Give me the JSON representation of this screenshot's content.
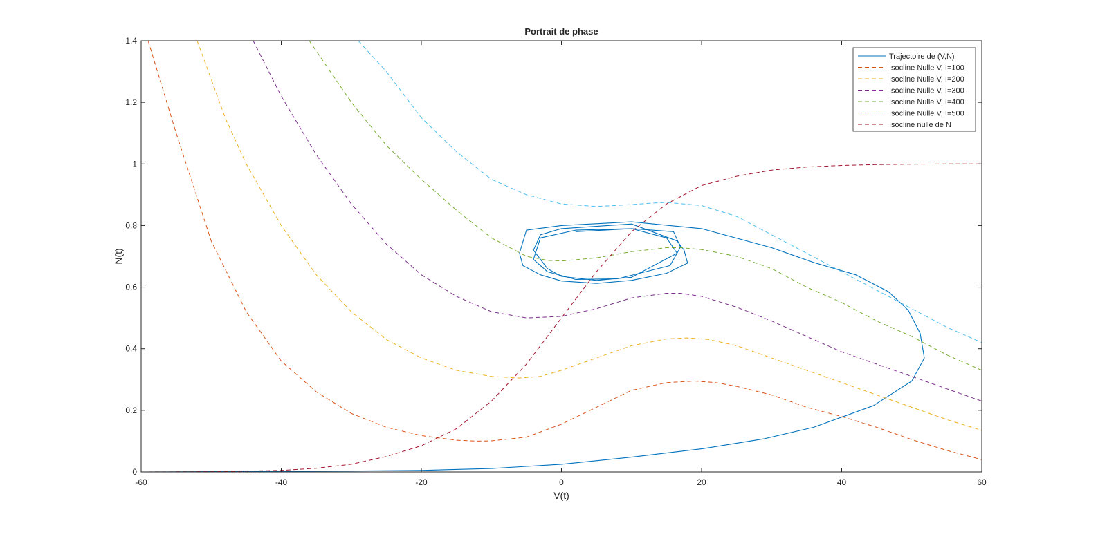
{
  "figure": {
    "background": "#ffffff"
  },
  "chart_data": {
    "type": "line",
    "title": "Portrait de phase",
    "xlabel": "V(t)",
    "ylabel": "N(t)",
    "xlim": [
      -60,
      60
    ],
    "ylim": [
      0,
      1.4
    ],
    "xticks": [
      -60,
      -40,
      -20,
      0,
      20,
      40,
      60
    ],
    "yticks": [
      0,
      0.2,
      0.4,
      0.6,
      0.8,
      1,
      1.2,
      1.4
    ],
    "xtick_labels": [
      "-60",
      "-40",
      "-20",
      "0",
      "20",
      "40",
      "60"
    ],
    "ytick_labels": [
      "0",
      "0.2",
      "0.4",
      "0.6",
      "0.8",
      "1",
      "1.2",
      "1.4"
    ],
    "grid": false,
    "box": true,
    "legend_position": "top-right",
    "series": [
      {
        "name": "Trajectoire de (V,N)",
        "color": "#0072bd",
        "style": "solid",
        "x": [
          -60,
          -50,
          -40,
          -30,
          -20,
          -10,
          0,
          10,
          20,
          29,
          36,
          44.5,
          50,
          51.8,
          51.2,
          49.5,
          46.7,
          42,
          36,
          30,
          20,
          10,
          0,
          -5,
          -6,
          -5.5,
          -3,
          0,
          5,
          10,
          15,
          18,
          17.5,
          16.5,
          10,
          0,
          -3,
          -4,
          -2,
          0,
          5,
          10,
          16.5,
          15,
          10,
          2,
          -3,
          -4,
          -2,
          2,
          8,
          15.5,
          17,
          16,
          10,
          2
        ],
        "y": [
          0,
          0.001,
          0.002,
          0.003,
          0.005,
          0.011,
          0.025,
          0.048,
          0.075,
          0.108,
          0.145,
          0.215,
          0.295,
          0.37,
          0.45,
          0.525,
          0.585,
          0.64,
          0.68,
          0.728,
          0.79,
          0.812,
          0.8,
          0.785,
          0.71,
          0.67,
          0.64,
          0.62,
          0.612,
          0.622,
          0.645,
          0.678,
          0.72,
          0.75,
          0.805,
          0.79,
          0.77,
          0.72,
          0.66,
          0.635,
          0.622,
          0.632,
          0.71,
          0.76,
          0.79,
          0.785,
          0.76,
          0.69,
          0.65,
          0.625,
          0.627,
          0.67,
          0.73,
          0.78,
          0.79,
          0.78
        ]
      },
      {
        "name": "Isocline Nulle V, I=100",
        "color": "#d95319",
        "style": "dashed",
        "x": [
          -59,
          -55,
          -50,
          -45,
          -40,
          -35,
          -30,
          -25,
          -20,
          -15,
          -12,
          -10,
          -5,
          0,
          5,
          10,
          15,
          19,
          22,
          25,
          30,
          35,
          40,
          45,
          50,
          55,
          60
        ],
        "y": [
          1.4,
          1.1,
          0.75,
          0.52,
          0.36,
          0.26,
          0.19,
          0.145,
          0.118,
          0.103,
          0.1,
          0.101,
          0.113,
          0.155,
          0.21,
          0.265,
          0.29,
          0.295,
          0.29,
          0.278,
          0.25,
          0.21,
          0.18,
          0.145,
          0.105,
          0.07,
          0.04
        ]
      },
      {
        "name": "Isocline Nulle V, I=200",
        "color": "#edb120",
        "style": "dashed",
        "x": [
          -52,
          -48,
          -45,
          -40,
          -35,
          -30,
          -25,
          -20,
          -15,
          -10,
          -6,
          -3,
          0,
          5,
          10,
          15,
          18,
          21,
          25,
          30,
          35,
          40,
          45,
          50,
          55,
          60
        ],
        "y": [
          1.4,
          1.15,
          1.0,
          0.8,
          0.64,
          0.52,
          0.43,
          0.37,
          0.33,
          0.31,
          0.305,
          0.31,
          0.33,
          0.37,
          0.41,
          0.432,
          0.435,
          0.43,
          0.41,
          0.37,
          0.33,
          0.29,
          0.25,
          0.21,
          0.17,
          0.135
        ]
      },
      {
        "name": "Isocline Nulle V, I=300",
        "color": "#7e2f8e",
        "style": "dashed",
        "x": [
          -44,
          -40,
          -35,
          -30,
          -25,
          -20,
          -15,
          -10,
          -5,
          0,
          5,
          10,
          15,
          17,
          20,
          25,
          30,
          35,
          40,
          45,
          50,
          55,
          60
        ],
        "y": [
          1.4,
          1.22,
          1.03,
          0.87,
          0.74,
          0.64,
          0.57,
          0.52,
          0.5,
          0.505,
          0.53,
          0.565,
          0.58,
          0.58,
          0.57,
          0.535,
          0.49,
          0.44,
          0.39,
          0.35,
          0.31,
          0.27,
          0.23
        ]
      },
      {
        "name": "Isocline Nulle V, I=400",
        "color": "#77ac30",
        "style": "dashed",
        "x": [
          -36,
          -30,
          -25,
          -20,
          -15,
          -10,
          -5,
          -2,
          0,
          5,
          10,
          15,
          17,
          20,
          25,
          30,
          35,
          40,
          45,
          50,
          55,
          60
        ],
        "y": [
          1.4,
          1.2,
          1.06,
          0.95,
          0.85,
          0.76,
          0.7,
          0.687,
          0.685,
          0.695,
          0.715,
          0.728,
          0.728,
          0.722,
          0.7,
          0.66,
          0.6,
          0.55,
          0.49,
          0.44,
          0.38,
          0.33
        ]
      },
      {
        "name": "Isocline Nulle V, I=500",
        "color": "#4dbeee",
        "style": "dashed",
        "x": [
          -29,
          -25,
          -20,
          -15,
          -10,
          -5,
          0,
          5,
          10,
          13,
          15,
          20,
          25,
          30,
          35,
          40,
          45,
          50,
          55,
          60
        ],
        "y": [
          1.4,
          1.3,
          1.15,
          1.04,
          0.95,
          0.9,
          0.87,
          0.862,
          0.868,
          0.873,
          0.875,
          0.865,
          0.83,
          0.77,
          0.71,
          0.65,
          0.59,
          0.53,
          0.47,
          0.42
        ]
      },
      {
        "name": "Isocline nulle de N",
        "color": "#a2142f",
        "style": "dashed",
        "x": [
          -60,
          -50,
          -40,
          -35,
          -30,
          -25,
          -20,
          -15,
          -10,
          -5,
          0,
          5,
          10,
          15,
          20,
          25,
          30,
          35,
          40,
          45,
          50,
          55,
          60
        ],
        "y": [
          0,
          0.001,
          0.005,
          0.012,
          0.025,
          0.05,
          0.085,
          0.14,
          0.23,
          0.35,
          0.5,
          0.65,
          0.78,
          0.87,
          0.93,
          0.96,
          0.98,
          0.99,
          0.995,
          0.998,
          0.999,
          1.0,
          1.0
        ]
      }
    ]
  }
}
